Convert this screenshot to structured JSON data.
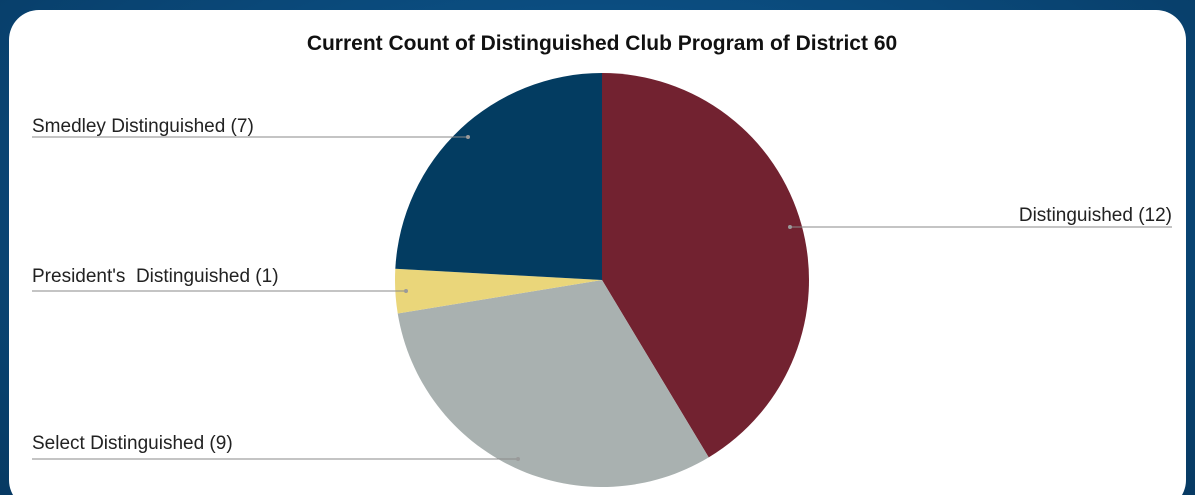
{
  "chart_data": {
    "type": "pie",
    "title": "Current Count of Distinguished Club Program of District 60",
    "slices": [
      {
        "label": "Distinguished (12)",
        "value": 12,
        "color": "#722230"
      },
      {
        "label": "Select Distinguished (9)",
        "value": 9,
        "color": "#a9b1b0"
      },
      {
        "label": "President's  Distinguished (1)",
        "value": 1,
        "color": "#ead67a"
      },
      {
        "label": "Smedley Distinguished (7)",
        "value": 7,
        "color": "#033c61"
      }
    ],
    "start_angle_deg": 0,
    "direction": "clockwise",
    "labels": "outside-with-leader-lines",
    "legend": "none"
  }
}
